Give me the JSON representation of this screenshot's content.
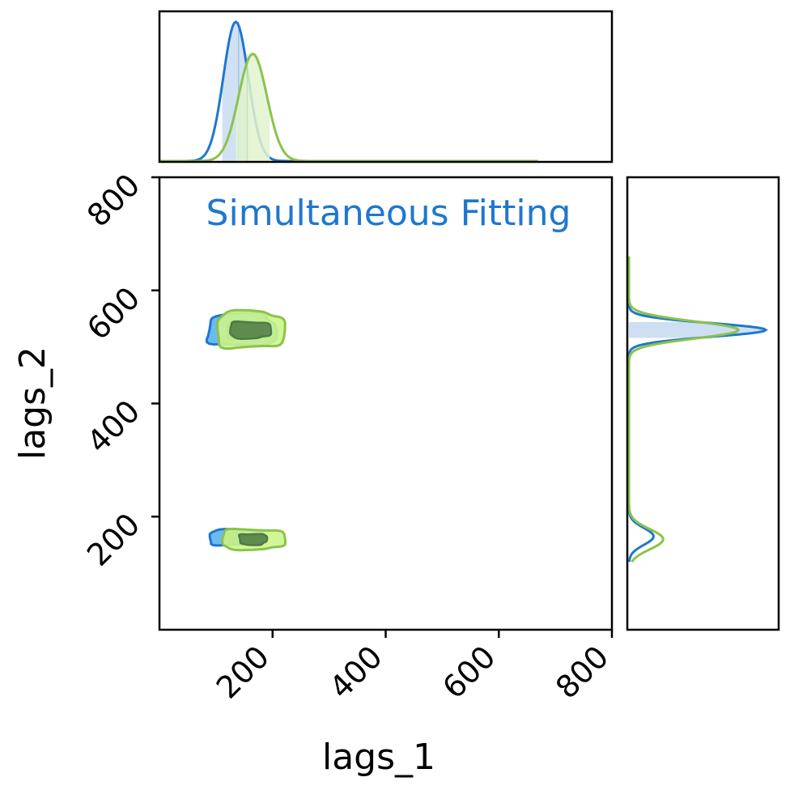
{
  "colors": {
    "series_a": "#1f77cf",
    "series_a_fill": "#5ab4f0",
    "series_a_light": "#c9dcf2",
    "series_b": "#8bc34a",
    "series_b_fill": "#cdf58a",
    "series_b_light": "#e2f3cf",
    "core": "#3f6b3a",
    "annotation": "#1f77cf"
  },
  "chart_data": {
    "type": "corner",
    "annotation": "Simultaneous Fitting",
    "xlabel": "lags_1",
    "ylabel": "lags_2",
    "xlim": [
      0,
      800
    ],
    "ylim": [
      0,
      800
    ],
    "xticks": [
      "200",
      "400",
      "600",
      "800"
    ],
    "yticks": [
      "200",
      "400",
      "600",
      "800"
    ],
    "series": [
      {
        "color_key": "series_a",
        "lags_1_marginal": {
          "peak": 135,
          "width": 22
        },
        "lags_2_marginal": {
          "modes": [
            {
              "center": 530,
              "width": 12,
              "weight": 1.0
            },
            {
              "center": 165,
              "width": 15,
              "weight": 0.18
            }
          ]
        },
        "joint_modes": [
          {
            "lags_1": 145,
            "lags_2": 530,
            "outer": [
              [
                75,
                35
              ],
              [
                40,
                20
              ]
            ]
          },
          {
            "lags_1": 135,
            "lags_2": 163,
            "outer": [
              [
                60,
                17
              ],
              [
                35,
                10
              ]
            ]
          }
        ]
      },
      {
        "color_key": "series_b",
        "lags_1_marginal": {
          "peak": 165,
          "width": 25
        },
        "lags_2_marginal": {
          "modes": [
            {
              "center": 530,
              "width": 15,
              "weight": 0.8
            },
            {
              "center": 160,
              "width": 18,
              "weight": 0.25
            }
          ]
        },
        "joint_modes": [
          {
            "lags_1": 160,
            "lags_2": 530,
            "outer": [
              [
                75,
                40
              ],
              [
                45,
                18
              ]
            ]
          },
          {
            "lags_1": 165,
            "lags_2": 160,
            "outer": [
              [
                70,
                22
              ],
              [
                30,
                12
              ]
            ]
          }
        ]
      }
    ]
  }
}
